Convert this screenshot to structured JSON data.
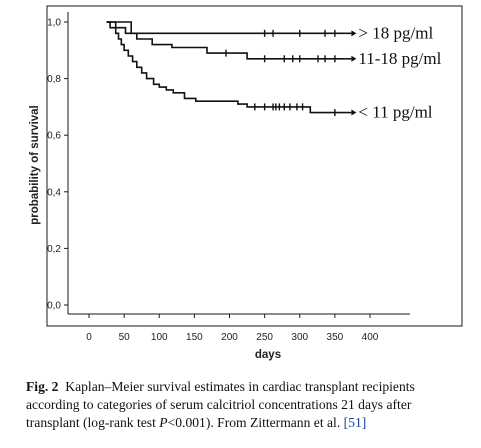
{
  "chart_data": {
    "type": "line",
    "subtype": "step",
    "xlabel": "days",
    "ylabel": "probability of survival",
    "xlim": [
      -50,
      500
    ],
    "ylim": [
      -0.05,
      1.05
    ],
    "x_ticks": [
      0,
      50,
      100,
      150,
      200,
      250,
      300,
      350,
      400
    ],
    "x_tick_labels": [
      "0",
      "50",
      "100",
      "150",
      "200",
      "250",
      "300",
      "350",
      "400"
    ],
    "y_ticks": [
      0.0,
      0.2,
      0.4,
      0.6,
      0.8,
      1.0
    ],
    "y_tick_labels": [
      "0,0",
      "0,2",
      "0,4",
      "0,6",
      "0,8",
      "1,0"
    ],
    "grid": false,
    "legend": "none",
    "series": [
      {
        "name": "> 18 pg/ml",
        "color": "#111111",
        "steps": [
          [
            25,
            1.0
          ],
          [
            60,
            1.0
          ],
          [
            60,
            0.96
          ],
          [
            365,
            0.96
          ]
        ],
        "censor_x": [
          250,
          262,
          300,
          336,
          350
        ]
      },
      {
        "name": "11-18 pg/ml",
        "color": "#111111",
        "steps": [
          [
            25,
            1.0
          ],
          [
            38,
            1.0
          ],
          [
            38,
            0.98
          ],
          [
            52,
            0.98
          ],
          [
            52,
            0.96
          ],
          [
            68,
            0.96
          ],
          [
            68,
            0.94
          ],
          [
            90,
            0.94
          ],
          [
            90,
            0.92
          ],
          [
            118,
            0.92
          ],
          [
            118,
            0.91
          ],
          [
            168,
            0.91
          ],
          [
            168,
            0.89
          ],
          [
            225,
            0.89
          ],
          [
            225,
            0.87
          ],
          [
            365,
            0.87
          ]
        ],
        "censor_x": [
          195,
          250,
          278,
          290,
          300,
          326,
          336,
          350
        ]
      },
      {
        "name": "< 11 pg/ml",
        "color": "#111111",
        "steps": [
          [
            25,
            1.0
          ],
          [
            30,
            1.0
          ],
          [
            30,
            0.98
          ],
          [
            38,
            0.98
          ],
          [
            38,
            0.96
          ],
          [
            42,
            0.96
          ],
          [
            42,
            0.94
          ],
          [
            46,
            0.94
          ],
          [
            46,
            0.92
          ],
          [
            50,
            0.92
          ],
          [
            50,
            0.9
          ],
          [
            56,
            0.9
          ],
          [
            56,
            0.88
          ],
          [
            62,
            0.88
          ],
          [
            62,
            0.86
          ],
          [
            68,
            0.86
          ],
          [
            68,
            0.84
          ],
          [
            75,
            0.84
          ],
          [
            75,
            0.82
          ],
          [
            82,
            0.82
          ],
          [
            82,
            0.8
          ],
          [
            92,
            0.8
          ],
          [
            92,
            0.78
          ],
          [
            100,
            0.78
          ],
          [
            100,
            0.77
          ],
          [
            110,
            0.77
          ],
          [
            110,
            0.76
          ],
          [
            120,
            0.76
          ],
          [
            120,
            0.75
          ],
          [
            136,
            0.75
          ],
          [
            136,
            0.73
          ],
          [
            152,
            0.73
          ],
          [
            152,
            0.72
          ],
          [
            212,
            0.72
          ],
          [
            212,
            0.71
          ],
          [
            225,
            0.71
          ],
          [
            225,
            0.7
          ],
          [
            315,
            0.7
          ],
          [
            315,
            0.68
          ],
          [
            365,
            0.68
          ]
        ],
        "censor_x": [
          236,
          250,
          262,
          266,
          271,
          278,
          286,
          296,
          304,
          350
        ]
      }
    ]
  },
  "caption": {
    "label": "Fig. 2",
    "text_before_p": "Kaplan–Meier survival estimates in cardiac transplant recipients according to categories of serum calcitriol concentrations 21 days after transplant (log-rank test ",
    "p_symbol": "P",
    "text_after_p": "<0.001). From Zittermann et al. ",
    "reference": "[51]"
  }
}
